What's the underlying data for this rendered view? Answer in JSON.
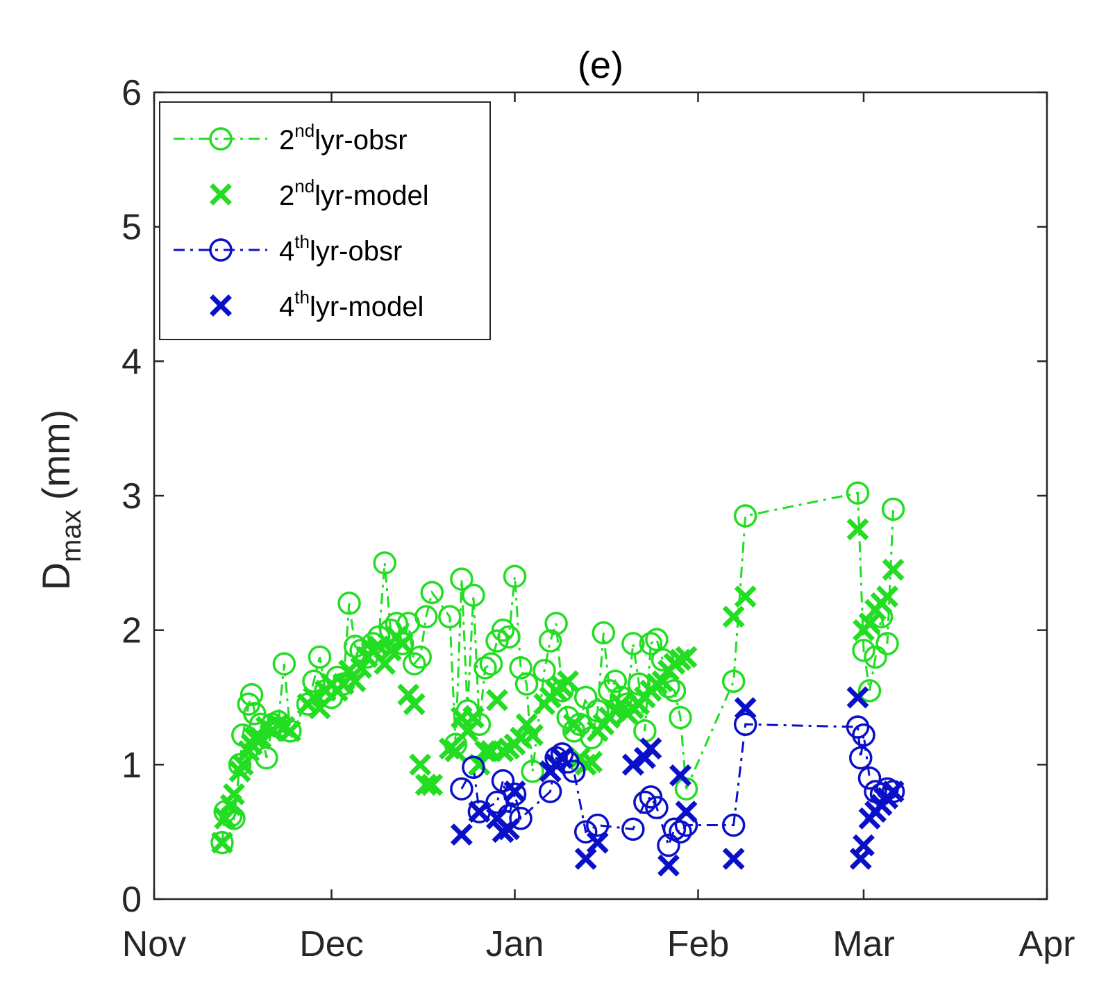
{
  "chart_data": {
    "type": "line",
    "title": "(e)",
    "xlabel": "",
    "ylabel": {
      "main": "D",
      "sub": "max",
      "units": "(mm)"
    },
    "xlim": [
      0,
      151
    ],
    "ylim": [
      0,
      6
    ],
    "xticks": [
      {
        "value": 0,
        "label": "Nov"
      },
      {
        "value": 30,
        "label": "Dec"
      },
      {
        "value": 61,
        "label": "Jan"
      },
      {
        "value": 92,
        "label": "Feb"
      },
      {
        "value": 120,
        "label": "Mar"
      },
      {
        "value": 151,
        "label": "Apr"
      }
    ],
    "yticks": [
      0,
      1,
      2,
      3,
      4,
      5,
      6
    ],
    "grid": false,
    "legend_position": "top-left",
    "colors": {
      "green": "#22dd22",
      "blue": "#0a10c8",
      "axis": "#262626"
    },
    "series": [
      {
        "name": "lyr-obsr",
        "sup": "nd",
        "prefix": "2",
        "color": "#22dd22",
        "marker": "circle",
        "line": "dashdot",
        "points": [
          [
            11.5,
            0.42
          ],
          [
            12,
            0.65
          ],
          [
            13,
            0.62
          ],
          [
            13.5,
            0.6
          ],
          [
            14.5,
            1.0
          ],
          [
            15,
            1.22
          ],
          [
            16,
            1.45
          ],
          [
            16.5,
            1.52
          ],
          [
            17,
            1.38
          ],
          [
            18,
            1.3
          ],
          [
            19,
            1.05
          ],
          [
            20,
            1.3
          ],
          [
            21,
            1.32
          ],
          [
            22,
            1.75
          ],
          [
            23,
            1.25
          ],
          [
            26,
            1.45
          ],
          [
            27,
            1.62
          ],
          [
            28,
            1.8
          ],
          [
            29,
            1.55
          ],
          [
            30,
            1.5
          ],
          [
            31,
            1.65
          ],
          [
            32,
            1.6
          ],
          [
            33,
            2.2
          ],
          [
            34,
            1.88
          ],
          [
            35,
            1.85
          ],
          [
            36,
            1.8
          ],
          [
            37,
            1.9
          ],
          [
            38,
            1.95
          ],
          [
            39,
            2.5
          ],
          [
            40,
            2.0
          ],
          [
            41,
            2.05
          ],
          [
            42,
            1.9
          ],
          [
            43,
            2.05
          ],
          [
            44,
            1.75
          ],
          [
            45,
            1.8
          ],
          [
            46,
            2.1
          ],
          [
            47,
            2.28
          ],
          [
            50,
            2.1
          ],
          [
            51,
            1.15
          ],
          [
            52,
            2.38
          ],
          [
            53,
            1.4
          ],
          [
            54,
            2.26
          ],
          [
            55,
            1.3
          ],
          [
            56,
            1.72
          ],
          [
            57,
            1.75
          ],
          [
            58,
            1.92
          ],
          [
            59,
            2.0
          ],
          [
            60,
            1.95
          ],
          [
            61,
            2.4
          ],
          [
            62,
            1.72
          ],
          [
            63,
            1.6
          ],
          [
            64,
            0.95
          ],
          [
            66,
            1.7
          ],
          [
            67,
            1.92
          ],
          [
            68,
            2.05
          ],
          [
            69,
            1.55
          ],
          [
            70,
            1.35
          ],
          [
            71,
            1.25
          ],
          [
            72,
            1.3
          ],
          [
            73,
            1.5
          ],
          [
            74,
            1.2
          ],
          [
            75,
            1.4
          ],
          [
            76,
            1.98
          ],
          [
            77,
            1.55
          ],
          [
            78,
            1.62
          ],
          [
            79,
            1.5
          ],
          [
            80,
            1.45
          ],
          [
            81,
            1.9
          ],
          [
            82,
            1.6
          ],
          [
            83,
            1.25
          ],
          [
            84,
            1.9
          ],
          [
            85,
            1.93
          ],
          [
            86,
            1.78
          ],
          [
            87,
            1.58
          ],
          [
            88,
            1.55
          ],
          [
            89,
            1.35
          ],
          [
            90,
            0.82
          ],
          [
            98,
            1.62
          ],
          [
            100,
            2.85
          ],
          [
            119,
            3.02
          ],
          [
            120,
            1.85
          ],
          [
            121,
            1.55
          ],
          [
            122,
            1.8
          ],
          [
            123,
            2.1
          ],
          [
            124,
            1.9
          ],
          [
            125,
            2.9
          ]
        ]
      },
      {
        "name": "lyr-model",
        "sup": "nd",
        "prefix": "2",
        "color": "#22dd22",
        "marker": "x",
        "line": "none",
        "points": [
          [
            11.5,
            0.42
          ],
          [
            12,
            0.6
          ],
          [
            13,
            0.7
          ],
          [
            13.5,
            0.78
          ],
          [
            14.5,
            0.95
          ],
          [
            15,
            1.0
          ],
          [
            16,
            1.1
          ],
          [
            16.5,
            1.15
          ],
          [
            17,
            1.2
          ],
          [
            18,
            1.2
          ],
          [
            19,
            1.28
          ],
          [
            20,
            1.25
          ],
          [
            21,
            1.3
          ],
          [
            22,
            1.28
          ],
          [
            23,
            1.25
          ],
          [
            26,
            1.45
          ],
          [
            27,
            1.5
          ],
          [
            28,
            1.42
          ],
          [
            29,
            1.55
          ],
          [
            30,
            1.6
          ],
          [
            31,
            1.55
          ],
          [
            32,
            1.6
          ],
          [
            33,
            1.7
          ],
          [
            34,
            1.62
          ],
          [
            35,
            1.72
          ],
          [
            36,
            1.8
          ],
          [
            37,
            1.85
          ],
          [
            38,
            1.88
          ],
          [
            39,
            1.75
          ],
          [
            40,
            1.85
          ],
          [
            41,
            1.95
          ],
          [
            42,
            1.9
          ],
          [
            43,
            1.52
          ],
          [
            44,
            1.45
          ],
          [
            45,
            1.0
          ],
          [
            46,
            0.85
          ],
          [
            47,
            0.85
          ],
          [
            50,
            1.12
          ],
          [
            51,
            1.1
          ],
          [
            52,
            1.35
          ],
          [
            53,
            1.25
          ],
          [
            54,
            1.35
          ],
          [
            55,
            1.0
          ],
          [
            56,
            1.1
          ],
          [
            57,
            1.1
          ],
          [
            58,
            1.48
          ],
          [
            59,
            1.1
          ],
          [
            60,
            1.12
          ],
          [
            61,
            1.15
          ],
          [
            62,
            1.2
          ],
          [
            63,
            1.3
          ],
          [
            64,
            1.22
          ],
          [
            66,
            1.45
          ],
          [
            67,
            1.5
          ],
          [
            68,
            1.55
          ],
          [
            69,
            1.58
          ],
          [
            70,
            1.62
          ],
          [
            71,
            1.3
          ],
          [
            72,
            1.05
          ],
          [
            73,
            1.0
          ],
          [
            74,
            1.02
          ],
          [
            75,
            1.25
          ],
          [
            76,
            1.3
          ],
          [
            77,
            1.35
          ],
          [
            78,
            1.4
          ],
          [
            79,
            1.45
          ],
          [
            80,
            1.38
          ],
          [
            81,
            1.42
          ],
          [
            82,
            1.45
          ],
          [
            83,
            1.5
          ],
          [
            84,
            1.55
          ],
          [
            85,
            1.6
          ],
          [
            86,
            1.62
          ],
          [
            87,
            1.7
          ],
          [
            88,
            1.75
          ],
          [
            89,
            1.78
          ],
          [
            90,
            1.8
          ],
          [
            98,
            2.1
          ],
          [
            100,
            2.25
          ],
          [
            119,
            2.75
          ],
          [
            120,
            2.0
          ],
          [
            121,
            2.05
          ],
          [
            122,
            2.15
          ],
          [
            123,
            2.2
          ],
          [
            124,
            2.25
          ],
          [
            125,
            2.45
          ]
        ]
      },
      {
        "name": "lyr-obsr",
        "sup": "th",
        "prefix": "4",
        "color": "#0a10c8",
        "marker": "circle",
        "line": "dashdot",
        "points": [
          [
            52,
            0.82
          ],
          [
            54,
            0.98
          ],
          [
            55,
            0.65
          ],
          [
            58,
            0.72
          ],
          [
            59,
            0.88
          ],
          [
            60,
            0.62
          ],
          [
            61,
            0.78
          ],
          [
            62,
            0.6
          ],
          [
            67,
            0.8
          ],
          [
            68,
            1.05
          ],
          [
            69,
            1.08
          ],
          [
            70,
            1.02
          ],
          [
            71,
            0.95
          ],
          [
            73,
            0.5
          ],
          [
            75,
            0.55
          ],
          [
            81,
            0.52
          ],
          [
            83,
            0.72
          ],
          [
            84,
            0.76
          ],
          [
            85,
            0.68
          ],
          [
            87,
            0.4
          ],
          [
            88,
            0.52
          ],
          [
            89,
            0.5
          ],
          [
            90,
            0.55
          ],
          [
            98,
            0.55
          ],
          [
            100,
            1.3
          ],
          [
            119,
            1.28
          ],
          [
            119.5,
            1.05
          ],
          [
            120,
            1.22
          ],
          [
            121,
            0.9
          ],
          [
            122,
            0.8
          ],
          [
            123,
            0.78
          ],
          [
            124,
            0.82
          ],
          [
            125,
            0.8
          ]
        ]
      },
      {
        "name": "lyr-model",
        "sup": "th",
        "prefix": "4",
        "color": "#0a10c8",
        "marker": "x",
        "line": "none",
        "points": [
          [
            52,
            0.48
          ],
          [
            55,
            0.65
          ],
          [
            58,
            0.6
          ],
          [
            59,
            0.5
          ],
          [
            60,
            0.52
          ],
          [
            61,
            0.8
          ],
          [
            67,
            0.95
          ],
          [
            68,
            1.0
          ],
          [
            69,
            1.05
          ],
          [
            73,
            0.3
          ],
          [
            75,
            0.42
          ],
          [
            81,
            1.0
          ],
          [
            83,
            1.05
          ],
          [
            84,
            1.12
          ],
          [
            87,
            0.25
          ],
          [
            89,
            0.92
          ],
          [
            90,
            0.65
          ],
          [
            98,
            0.3
          ],
          [
            100,
            1.42
          ],
          [
            119,
            1.5
          ],
          [
            119.5,
            0.3
          ],
          [
            120,
            0.4
          ],
          [
            121,
            0.6
          ],
          [
            122,
            0.65
          ],
          [
            123,
            0.7
          ],
          [
            124,
            0.75
          ],
          [
            125,
            0.8
          ]
        ]
      }
    ]
  }
}
